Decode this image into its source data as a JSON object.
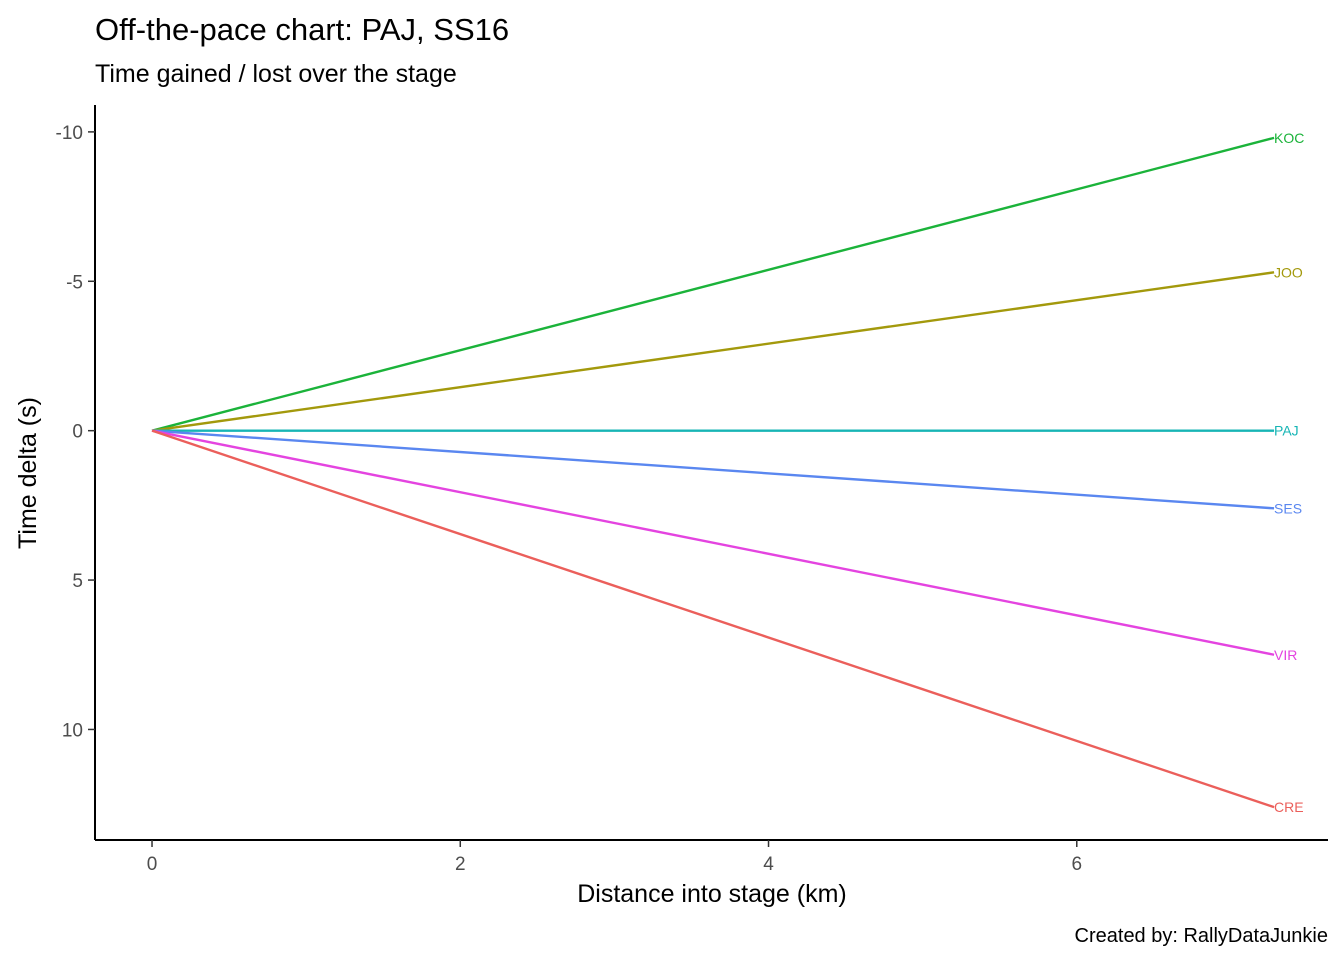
{
  "chart_data": {
    "type": "line",
    "title": "Off-the-pace chart: PAJ, SS16",
    "subtitle": "Time gained / lost over the stage",
    "xlabel": "Distance into stage (km)",
    "ylabel": "Time delta (s)",
    "caption": "Created by: RallyDataJunkie",
    "xlim": [
      -0.37,
      7.63
    ],
    "ylim": [
      -10.9,
      13.7
    ],
    "y_reversed": true,
    "x_ticks": [
      {
        "value": 0,
        "label": "0"
      },
      {
        "value": 2,
        "label": "2"
      },
      {
        "value": 4,
        "label": "4"
      },
      {
        "value": 6,
        "label": "6"
      }
    ],
    "y_ticks": [
      {
        "value": -10,
        "label": "-10"
      },
      {
        "value": -5,
        "label": "-5"
      },
      {
        "value": 0,
        "label": "0"
      },
      {
        "value": 5,
        "label": "5"
      },
      {
        "value": 10,
        "label": "10"
      }
    ],
    "grid": false,
    "legend": "none",
    "series": [
      {
        "name": "KOC",
        "color": "#1bb33a",
        "x": [
          0,
          7.28
        ],
        "y": [
          0,
          -9.8
        ]
      },
      {
        "name": "JOO",
        "color": "#a3990c",
        "x": [
          0,
          7.28
        ],
        "y": [
          0,
          -5.3
        ]
      },
      {
        "name": "PAJ",
        "color": "#17b5b5",
        "x": [
          0,
          7.28
        ],
        "y": [
          0,
          0
        ]
      },
      {
        "name": "SES",
        "color": "#5a87f0",
        "x": [
          0,
          7.28
        ],
        "y": [
          0,
          2.6
        ]
      },
      {
        "name": "VIR",
        "color": "#e444e0",
        "x": [
          0,
          7.28
        ],
        "y": [
          0,
          7.5
        ]
      },
      {
        "name": "CRE",
        "color": "#eb5f5b",
        "x": [
          0,
          7.28
        ],
        "y": [
          0,
          12.6
        ]
      }
    ]
  }
}
